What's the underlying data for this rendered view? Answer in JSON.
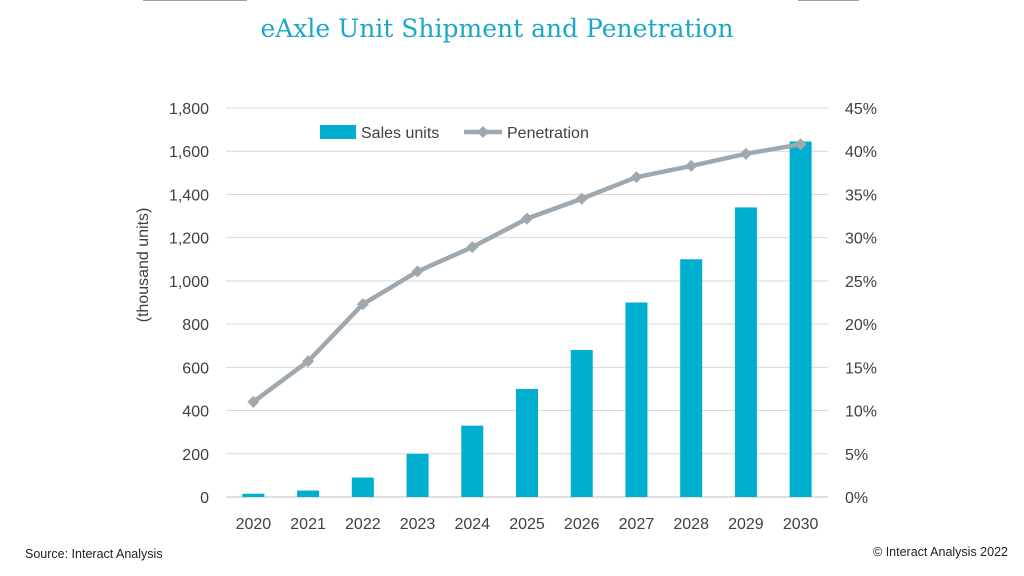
{
  "chart_data": {
    "type": "bar",
    "title": "eAxle Unit Shipment and Penetration",
    "categories": [
      "2020",
      "2021",
      "2022",
      "2023",
      "2024",
      "2025",
      "2026",
      "2027",
      "2028",
      "2029",
      "2030"
    ],
    "series": [
      {
        "name": "Sales units",
        "type": "bar",
        "axis": "left",
        "color": "#00aed0",
        "values": [
          15,
          30,
          90,
          200,
          330,
          500,
          680,
          900,
          1100,
          1340,
          1645
        ]
      },
      {
        "name": "Penetration",
        "type": "line",
        "axis": "right",
        "color": "#9ea8b0",
        "values": [
          0.11,
          0.157,
          0.223,
          0.261,
          0.289,
          0.322,
          0.345,
          0.37,
          0.383,
          0.397,
          0.408
        ]
      }
    ],
    "ylabel": "(thousand units)",
    "ylim": [
      0,
      1800
    ],
    "yticks": [
      "0",
      "200",
      "400",
      "600",
      "800",
      "1,000",
      "1,200",
      "1,400",
      "1,600",
      "1,800"
    ],
    "y2lim": [
      0,
      0.45
    ],
    "y2ticks": [
      "0%",
      "5%",
      "10%",
      "15%",
      "20%",
      "25%",
      "30%",
      "35%",
      "40%",
      "45%"
    ],
    "grid": true,
    "legend_position": "top-left"
  },
  "footer": {
    "source": "Source: Interact Analysis",
    "copyright": "© Interact Analysis 2022"
  }
}
